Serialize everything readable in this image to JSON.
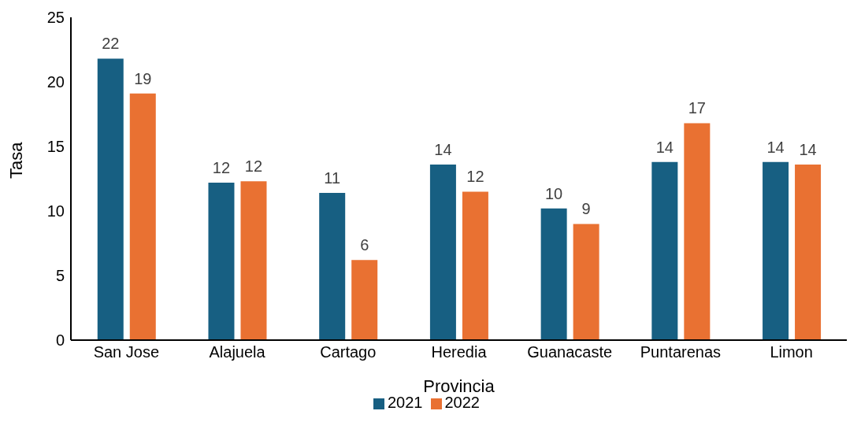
{
  "chart_data": {
    "type": "bar",
    "xlabel": "Provincia",
    "ylabel": "Tasa",
    "categories": [
      "San Jose",
      "Alajuela",
      "Cartago",
      "Heredia",
      "Guanacaste",
      "Puntarenas",
      "Limon"
    ],
    "series": [
      {
        "name": "2021",
        "color": "#175f82",
        "values": [
          21.8,
          12.2,
          11.4,
          13.6,
          10.2,
          13.8,
          13.8
        ],
        "value_labels": [
          "22",
          "12",
          "11",
          "14",
          "10",
          "14",
          "14"
        ]
      },
      {
        "name": "2022",
        "color": "#e97132",
        "values": [
          19.1,
          12.3,
          6.2,
          11.5,
          9.0,
          16.8,
          13.6
        ],
        "value_labels": [
          "19",
          "12",
          "6",
          "12",
          "9",
          "17",
          "14"
        ]
      }
    ],
    "ylim": [
      0,
      25
    ],
    "yticks": [
      0,
      5,
      10,
      15,
      20,
      25
    ],
    "grid": false,
    "legend": "bottom"
  }
}
